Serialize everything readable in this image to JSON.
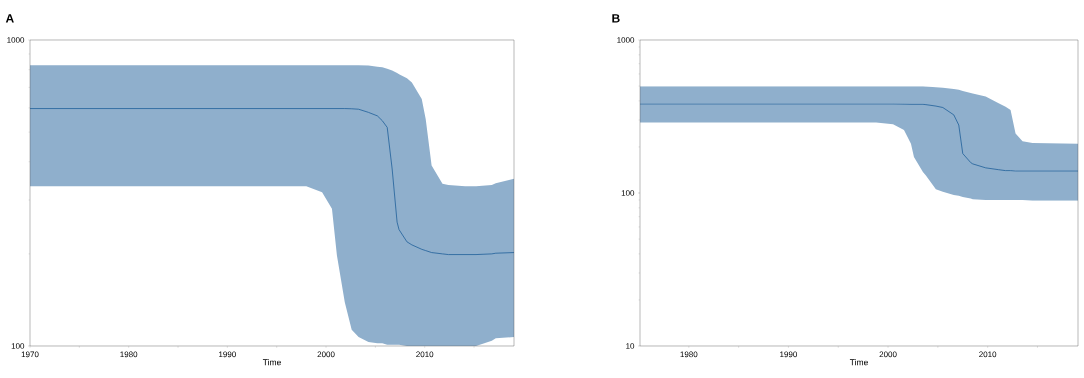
{
  "chart_data": [
    {
      "type": "line",
      "title": "A",
      "xlabel": "Time",
      "log": true,
      "xlim": [
        1970,
        2019.05
      ],
      "ylim": [
        100,
        1000
      ],
      "xticks": [
        1970,
        {
          "value": 1975,
          "label": null
        },
        1980,
        {
          "value": 1985,
          "label": null
        },
        1990,
        {
          "value": 1995,
          "label": null
        },
        2000,
        {
          "value": 2005,
          "label": null
        },
        2010,
        {
          "value": 2015,
          "label": null
        }
      ],
      "yticks": [
        100,
        1000
      ],
      "series": [
        {
          "color": "#1f5f99",
          "x": [
            1970,
            1998,
            1999.6,
            2000.6,
            2001.1,
            2001.9,
            2002.6,
            2003.3,
            2004.3,
            2005.2,
            2005.7,
            2006.2,
            2006.7,
            2007.2,
            2007.4,
            2008.2,
            2008.7,
            2009.7,
            2010.1,
            2010.7,
            2011.8,
            2012.4,
            2014.1,
            2015.2,
            2016.8,
            2017.2,
            2019.05
          ],
          "values": [
            597,
            597,
            597,
            597,
            597,
            597,
            596,
            594,
            580,
            565,
            545,
            518,
            379,
            254,
            240,
            219,
            214,
            207,
            205,
            202,
            200,
            199,
            199,
            199,
            200,
            201,
            202
          ],
          "upper": [
            827,
            827,
            827,
            827,
            827,
            827,
            827,
            827,
            825,
            818,
            814,
            805,
            795,
            780,
            773,
            750,
            726,
            641,
            552,
            389,
            339,
            336,
            333,
            333,
            336,
            340,
            352
          ],
          "lower": [
            333,
            333,
            318,
            281,
            198,
            139,
            113,
            107,
            103,
            102,
            102,
            101,
            101,
            101,
            101,
            100,
            100,
            100,
            100,
            100,
            100,
            100,
            100,
            100,
            104,
            106,
            107
          ]
        }
      ]
    },
    {
      "type": "line",
      "title": "B",
      "xlabel": "Time",
      "log": true,
      "xlim": [
        1975.1,
        2019.07
      ],
      "ylim": [
        10,
        1000
      ],
      "xticks": [
        1980,
        {
          "value": 1985,
          "label": null
        },
        1990,
        {
          "value": 1995,
          "label": null
        },
        2000,
        {
          "value": 2005,
          "label": null
        },
        2010,
        {
          "value": 2015,
          "label": null
        }
      ],
      "yticks": [
        10,
        100,
        1000
      ],
      "series": [
        {
          "color": "#1f5f99",
          "x": [
            1975.1,
            1998.8,
            2000.5,
            2001.6,
            2002.3,
            2002.6,
            2003.5,
            2003.8,
            2004.8,
            2005.5,
            2006.6,
            2007.1,
            2007.5,
            2008.3,
            2008.5,
            2009.8,
            2011.1,
            2011.8,
            2012.3,
            2012.8,
            2013.5,
            2014.5,
            2019.07
          ],
          "values": [
            382,
            382,
            382,
            381,
            380,
            380,
            380,
            378,
            370,
            362,
            324,
            278,
            181,
            158,
            155,
            146,
            142,
            140,
            140,
            139,
            139,
            139,
            139
          ],
          "upper": [
            498,
            498,
            498,
            498,
            498,
            498,
            498,
            497,
            492,
            488,
            478,
            473,
            465,
            450,
            447,
            428,
            386,
            366,
            349,
            245,
            218,
            212,
            210
          ],
          "lower": [
            289,
            289,
            281,
            258,
            210,
            172,
            137,
            130,
            106,
            102,
            97,
            96,
            94,
            92,
            91,
            90,
            90,
            90,
            90,
            90,
            90,
            89,
            89
          ]
        }
      ]
    }
  ]
}
